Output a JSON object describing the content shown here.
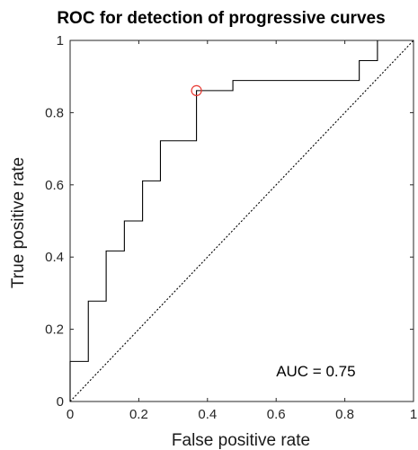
{
  "chart_data": {
    "type": "line",
    "title": "ROC for detection of progressive curves",
    "xlabel": "False positive rate",
    "ylabel": "True positive rate",
    "xlim": [
      0,
      1
    ],
    "ylim": [
      0,
      1
    ],
    "xticks": [
      "0",
      "0.2",
      "0.4",
      "0.6",
      "0.8",
      "1"
    ],
    "yticks": [
      "0",
      "0.2",
      "0.4",
      "0.6",
      "0.8",
      "1"
    ],
    "grid": false,
    "annotation": "AUC = 0.75",
    "series": [
      {
        "style": "solid",
        "color": "#000000",
        "x": [
          0,
          0,
          0.053,
          0.053,
          0.105,
          0.105,
          0.158,
          0.158,
          0.211,
          0.211,
          0.263,
          0.263,
          0.368,
          0.368,
          0.474,
          0.474,
          0.842,
          0.842,
          0.895,
          0.895
        ],
        "y": [
          0,
          0.111,
          0.111,
          0.278,
          0.278,
          0.417,
          0.417,
          0.5,
          0.5,
          0.611,
          0.611,
          0.722,
          0.722,
          0.861,
          0.861,
          0.889,
          0.889,
          0.944,
          0.944,
          1
        ]
      },
      {
        "style": "dotted",
        "color": "#000000",
        "x": [
          0,
          1
        ],
        "y": [
          0,
          1
        ]
      }
    ],
    "highlight_point": {
      "x": 0.368,
      "y": 0.861,
      "color": "#e8352e"
    }
  }
}
